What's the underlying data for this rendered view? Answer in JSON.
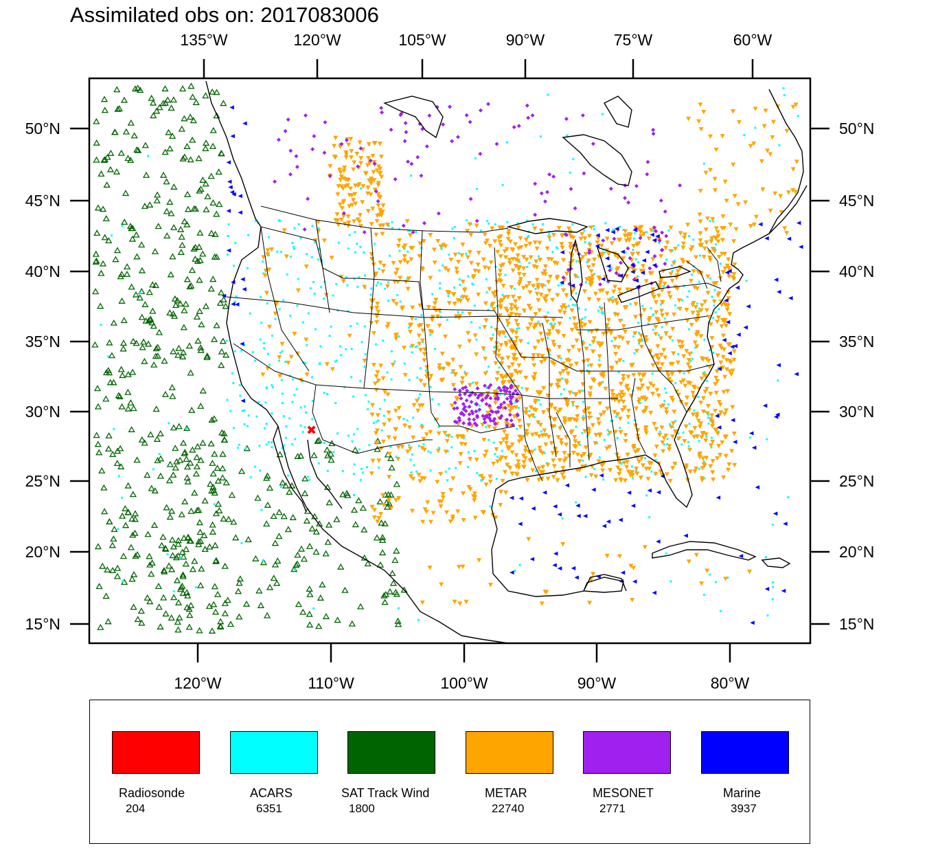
{
  "title": "Assimilated obs on: 2017083006",
  "top_lon_labels": [
    "135°W",
    "120°W",
    "105°W",
    "90°W",
    "75°W",
    "60°W"
  ],
  "bottom_lon_labels": [
    "120°W",
    "110°W",
    "100°W",
    "90°W",
    "80°W"
  ],
  "lat_labels": [
    "50°N",
    "45°N",
    "40°N",
    "35°N",
    "30°N",
    "25°N",
    "20°N",
    "15°N"
  ],
  "colors": {
    "radiosonde": "#ff0000",
    "acars": "#00ffff",
    "sat_track_wind": "#006400",
    "metar": "#ffa500",
    "mesonet": "#a020f0",
    "marine": "#0000ff"
  },
  "legend": [
    {
      "name": "Radiosonde",
      "count": "204",
      "color": "#ff0000"
    },
    {
      "name": "ACARS",
      "count": "6351",
      "color": "#00ffff"
    },
    {
      "name": "SAT Track Wind",
      "count": "1800",
      "color": "#006400"
    },
    {
      "name": "METAR",
      "count": "22740",
      "color": "#ffa500"
    },
    {
      "name": "MESONET",
      "count": "2771",
      "color": "#a020f0"
    },
    {
      "name": "Marine",
      "count": "3937",
      "color": "#0000ff"
    }
  ]
}
